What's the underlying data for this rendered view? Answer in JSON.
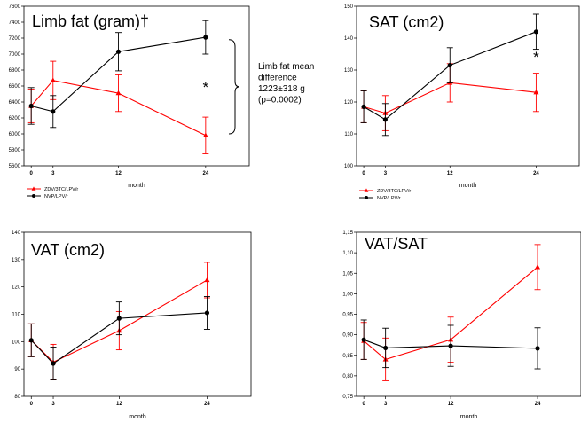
{
  "chart_data": [
    {
      "type": "line",
      "title": "Limb fat (gram)†",
      "xlabel": "month",
      "ylabel": "",
      "x": [
        0,
        3,
        12,
        24
      ],
      "x_tick_labels": [
        "0",
        "3",
        "12",
        "24"
      ],
      "xlim": [
        -1,
        30
      ],
      "ylim": [
        5600,
        7600
      ],
      "y_ticks": [
        5600,
        5800,
        6000,
        6200,
        6400,
        6600,
        6800,
        7000,
        7200,
        7400,
        7600
      ],
      "y_tick_labels": [
        "5600",
        "5800",
        "6000",
        "6200",
        "6400",
        "6600",
        "6800",
        "7000",
        "7200",
        "7400",
        "7600"
      ],
      "grid": false,
      "series": [
        {
          "name": "ZDV/3TC/LPV/r",
          "color": "#ff0000",
          "marker": "triangle",
          "values": [
            6350,
            6670,
            6510,
            5980
          ],
          "err": [
            210,
            240,
            230,
            230
          ]
        },
        {
          "name": "NVP/LPV/r",
          "color": "#000000",
          "marker": "circle",
          "values": [
            6350,
            6280,
            7030,
            7210
          ],
          "err": [
            230,
            200,
            240,
            210
          ]
        }
      ],
      "annotations": [
        {
          "text": "*",
          "x": 24
        }
      ],
      "side_note": [
        "Limb fat mean",
        "difference",
        "1223±318 g",
        "(p=0.0002)"
      ],
      "legend": "below-left"
    },
    {
      "type": "line",
      "title": "SAT (cm2)",
      "xlabel": "month",
      "ylabel": "",
      "x": [
        0,
        3,
        12,
        24
      ],
      "x_tick_labels": [
        "0",
        "3",
        "12",
        "24"
      ],
      "xlim": [
        -1,
        30
      ],
      "ylim": [
        100,
        150
      ],
      "y_ticks": [
        100,
        110,
        120,
        130,
        140,
        150
      ],
      "y_tick_labels": [
        "100",
        "110",
        "120",
        "130",
        "140",
        "150"
      ],
      "grid": false,
      "series": [
        {
          "name": "ZDV/3TC/LPV/r",
          "color": "#ff0000",
          "marker": "triangle",
          "values": [
            118.5,
            116.5,
            126,
            123
          ],
          "err": [
            5,
            5.5,
            6,
            6
          ]
        },
        {
          "name": "NVP/LPV/r",
          "color": "#000000",
          "marker": "circle",
          "values": [
            118.5,
            114.5,
            131.5,
            142
          ],
          "err": [
            5,
            5,
            5.5,
            5.5
          ]
        }
      ],
      "annotations": [
        {
          "text": "*",
          "x": 24
        }
      ],
      "legend": "below-left"
    },
    {
      "type": "line",
      "title": "VAT (cm2)",
      "xlabel": "month",
      "ylabel": "",
      "x": [
        0,
        3,
        12,
        24
      ],
      "x_tick_labels": [
        "0",
        "3",
        "12",
        "24"
      ],
      "xlim": [
        -1,
        30
      ],
      "ylim": [
        80,
        140
      ],
      "y_ticks": [
        80,
        90,
        100,
        110,
        120,
        130,
        140
      ],
      "y_tick_labels": [
        "80",
        "90",
        "100",
        "110",
        "120",
        "130",
        "140"
      ],
      "grid": false,
      "series": [
        {
          "name": "ZDV/3TC/LPV/r",
          "color": "#ff0000",
          "marker": "triangle",
          "values": [
            100.5,
            92.5,
            104,
            122.5
          ],
          "err": [
            6,
            6.5,
            7,
            6.5
          ]
        },
        {
          "name": "NVP/LPV/r",
          "color": "#000000",
          "marker": "circle",
          "values": [
            100.5,
            92,
            108.5,
            110.5
          ],
          "err": [
            6,
            6,
            6,
            6
          ]
        }
      ]
    },
    {
      "type": "line",
      "title": "VAT/SAT",
      "xlabel": "month",
      "ylabel": "",
      "x": [
        0,
        3,
        12,
        24
      ],
      "x_tick_labels": [
        "0",
        "3",
        "12",
        "24"
      ],
      "xlim": [
        -1,
        30
      ],
      "ylim": [
        0.75,
        1.15
      ],
      "y_ticks": [
        0.75,
        0.8,
        0.85,
        0.9,
        0.95,
        1.0,
        1.05,
        1.1,
        1.15
      ],
      "y_tick_labels": [
        "0,75",
        "0,80",
        "0,85",
        "0,90",
        "0,95",
        "1,00",
        "1,05",
        "1,10",
        "1,15"
      ],
      "grid": false,
      "series": [
        {
          "name": "ZDV/3TC/LPV/r",
          "color": "#ff0000",
          "marker": "triangle",
          "values": [
            0.885,
            0.84,
            0.888,
            1.065
          ],
          "err": [
            0.045,
            0.052,
            0.055,
            0.055
          ]
        },
        {
          "name": "NVP/LPV/r",
          "color": "#000000",
          "marker": "circle",
          "values": [
            0.888,
            0.868,
            0.873,
            0.867
          ],
          "err": [
            0.048,
            0.048,
            0.05,
            0.05
          ]
        }
      ]
    }
  ]
}
